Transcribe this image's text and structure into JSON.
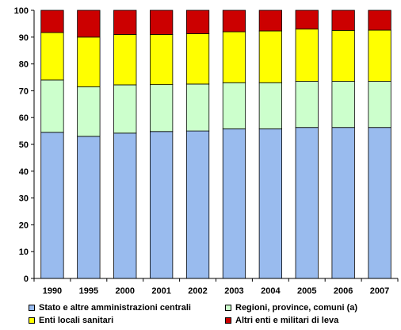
{
  "chart_data": {
    "type": "bar",
    "stacked": true,
    "title": "",
    "xlabel": "",
    "ylabel": "",
    "ylim": [
      0,
      100
    ],
    "yticks": [
      0,
      10,
      20,
      30,
      40,
      50,
      60,
      70,
      80,
      90,
      100
    ],
    "grid": false,
    "legend_position": "bottom",
    "categories": [
      "1990",
      "1995",
      "2000",
      "2001",
      "2002",
      "2003",
      "2004",
      "2005",
      "2006",
      "2007"
    ],
    "series": [
      {
        "name": "Stato e altre amministrazioni centrali",
        "color": "#99bbee",
        "values": [
          54.5,
          53,
          54.2,
          54.8,
          55,
          55.8,
          55.8,
          56.3,
          56.3,
          56.3
        ]
      },
      {
        "name": "Regioni, province, comuni (a)",
        "color": "#ccffcc",
        "values": [
          19.5,
          18.5,
          18,
          17.5,
          17.5,
          17.2,
          17.2,
          17.2,
          17.2,
          17.2
        ]
      },
      {
        "name": "Enti locali sanitari",
        "color": "#ffff00",
        "values": [
          17.7,
          18.5,
          18.8,
          18.7,
          18.8,
          19,
          19.3,
          19.5,
          19,
          19.1
        ]
      },
      {
        "name": "Altri enti e militari di leva",
        "color": "#cc0000",
        "values": [
          8.3,
          10,
          9,
          9,
          8.7,
          8,
          7.7,
          7,
          7.5,
          7.4
        ]
      }
    ]
  }
}
